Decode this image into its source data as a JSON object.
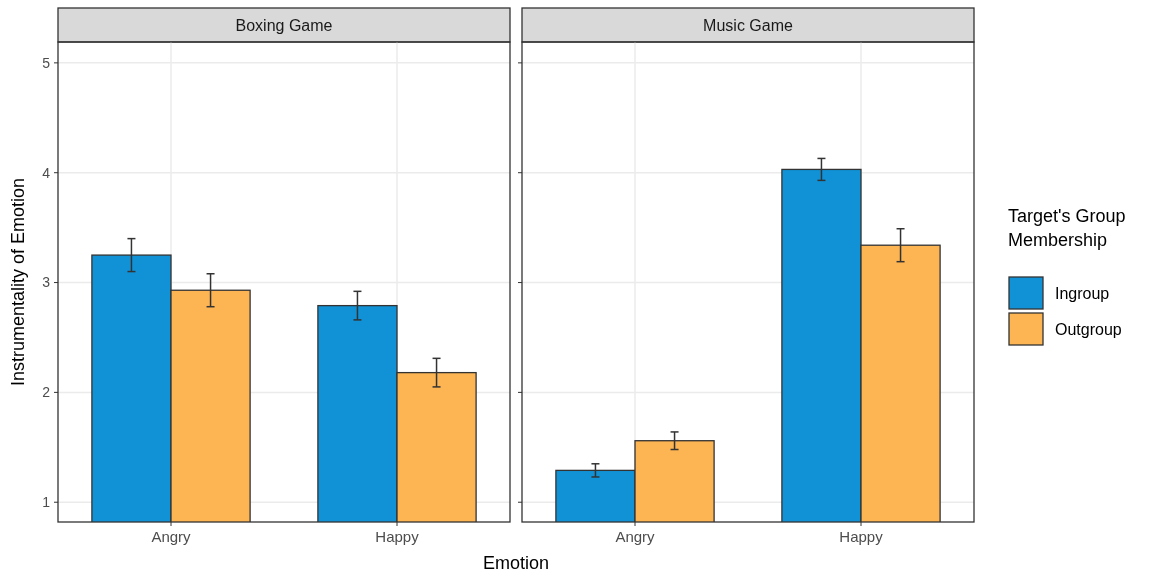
{
  "chart_data": [
    {
      "type": "bar",
      "title": "Boxing Game",
      "xlabel": "Emotion",
      "ylabel": "Instrumentality of Emotion",
      "categories": [
        "Angry",
        "Happy"
      ],
      "ylim": [
        0.82,
        5.19
      ],
      "yticks": [
        1,
        2,
        3,
        4,
        5
      ],
      "grid": true,
      "legend": false,
      "series": [
        {
          "color": "#1192d6",
          "values": [
            3.25,
            2.79
          ],
          "errors": [
            0.15,
            0.13
          ]
        },
        {
          "color": "#fdb452",
          "values": [
            2.93,
            2.18
          ],
          "errors": [
            0.15,
            0.13
          ]
        }
      ]
    },
    {
      "type": "bar",
      "title": "Music Game",
      "legend_title": "Target's Group Membership",
      "categories": [
        "Angry",
        "Happy"
      ],
      "ylim": [
        0.82,
        5.19
      ],
      "yticks": [
        1,
        2,
        3,
        4,
        5
      ],
      "grid": true,
      "legend": "right",
      "tick_labels": "x",
      "series": [
        {
          "name": "Ingroup",
          "color": "#1192d6",
          "values": [
            1.29,
            4.03
          ],
          "errors": [
            0.06,
            0.1
          ]
        },
        {
          "name": "Outgroup",
          "color": "#fdb452",
          "values": [
            1.56,
            3.34
          ],
          "errors": [
            0.08,
            0.15
          ]
        }
      ]
    }
  ]
}
